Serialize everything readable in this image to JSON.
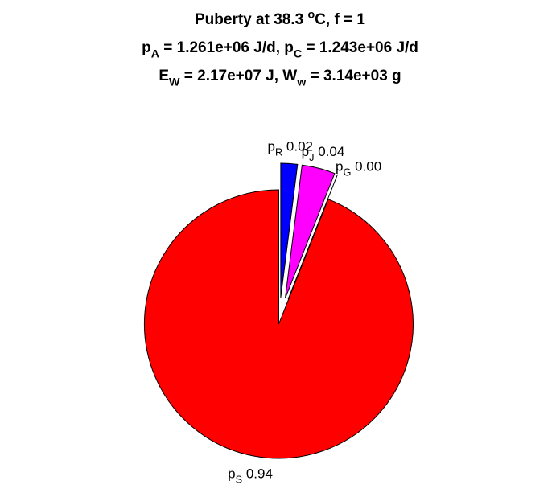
{
  "chart_data": {
    "type": "pie",
    "title": [
      [
        "Puberty at 38.3 ",
        {
          "sup": "o"
        },
        "C, f = 1"
      ],
      [
        "p",
        {
          "sub": "A"
        },
        " = 1.261e+06 J/d,  p",
        {
          "sub": "C"
        },
        " = 1.243e+06 J/d"
      ],
      [
        "E",
        {
          "sub": "W"
        },
        " = 2.17e+07 J, W",
        {
          "sub": "w"
        },
        " = 3.14e+03 g"
      ]
    ],
    "categories": [
      [
        "p",
        {
          "sub": "R"
        }
      ],
      [
        "p",
        {
          "sub": "J"
        }
      ],
      [
        "p",
        {
          "sub": "G"
        }
      ],
      [
        "p",
        {
          "sub": "S"
        }
      ]
    ],
    "values": [
      0.02,
      0.04,
      0.0,
      0.94
    ],
    "value_labels": [
      "0.02",
      "0.04",
      "0.00",
      "0.94"
    ],
    "colors": [
      "#0000ff",
      "#ff00ff",
      "#00ffff",
      "#ff0000"
    ]
  }
}
